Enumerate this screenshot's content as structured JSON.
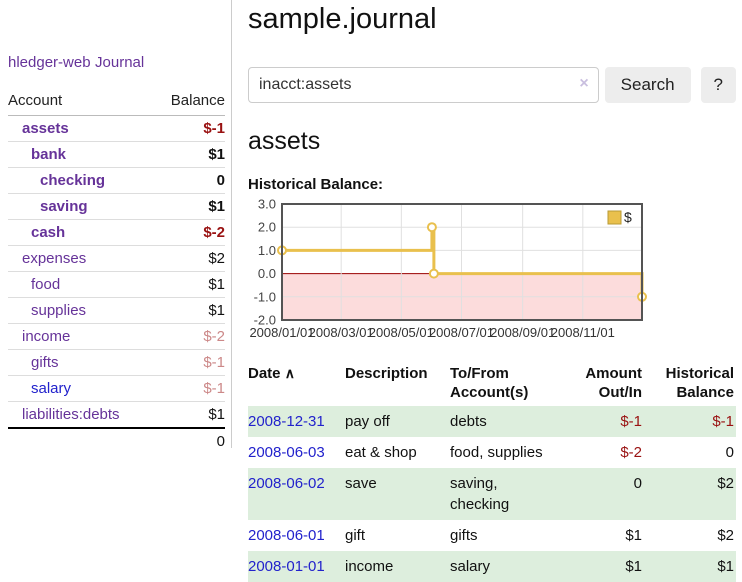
{
  "colors": {
    "link_purple": "#663399",
    "link_blue": "#2222cc",
    "negative": "#991111",
    "negative_pale": "#cc8888",
    "row_green": "#ddeedd"
  },
  "app": {
    "brand": "hledger-web",
    "nav_journal": "Journal"
  },
  "sidebar": {
    "header": {
      "account": "Account",
      "balance": "Balance"
    },
    "accounts": [
      {
        "name": "assets",
        "depth": 1,
        "bold": true,
        "balance": "$-1",
        "balance_class": "neg",
        "link_color": "purple"
      },
      {
        "name": "bank",
        "depth": 2,
        "bold": true,
        "balance": "$1",
        "balance_class": "",
        "link_color": "purple"
      },
      {
        "name": "checking",
        "depth": 3,
        "bold": true,
        "balance": "0",
        "balance_class": "",
        "link_color": "purple"
      },
      {
        "name": "saving",
        "depth": 3,
        "bold": true,
        "balance": "$1",
        "balance_class": "",
        "link_color": "purple"
      },
      {
        "name": "cash",
        "depth": 2,
        "bold": true,
        "balance": "$-2",
        "balance_class": "neg",
        "link_color": "purple"
      },
      {
        "name": "expenses",
        "depth": 1,
        "bold": false,
        "balance": "$2",
        "balance_class": "",
        "link_color": "purple"
      },
      {
        "name": "food",
        "depth": 2,
        "bold": false,
        "balance": "$1",
        "balance_class": "",
        "link_color": "purple"
      },
      {
        "name": "supplies",
        "depth": 2,
        "bold": false,
        "balance": "$1",
        "balance_class": "",
        "link_color": "purple"
      },
      {
        "name": "income",
        "depth": 1,
        "bold": false,
        "balance": "$-2",
        "balance_class": "pale",
        "link_color": "purple"
      },
      {
        "name": "gifts",
        "depth": 2,
        "bold": false,
        "balance": "$-1",
        "balance_class": "pale",
        "link_color": "purple"
      },
      {
        "name": "salary",
        "depth": 2,
        "bold": false,
        "balance": "$-1",
        "balance_class": "pale",
        "link_color": "blue"
      },
      {
        "name": "liabilities:debts",
        "depth": 1,
        "bold": false,
        "balance": "$1",
        "balance_class": "",
        "link_color": "purple"
      }
    ],
    "total": "0"
  },
  "main": {
    "title": "sample.journal",
    "search": {
      "value": "inacct:assets",
      "clear_icon": "×",
      "button_label": "Search",
      "help_label": "?"
    },
    "account_heading": "assets",
    "register": {
      "sort_icon": "∧",
      "columns": [
        {
          "line1": "Date",
          "line2": "",
          "align": "left",
          "sortable": true
        },
        {
          "line1": "Description",
          "line2": "",
          "align": "left"
        },
        {
          "line1": "To/From",
          "line2": "Account(s)",
          "align": "left"
        },
        {
          "line1": "Amount",
          "line2": "Out/In",
          "align": "right"
        },
        {
          "line1": "Historical",
          "line2": "Balance",
          "align": "right"
        }
      ],
      "rows": [
        {
          "date": "2008-12-31",
          "description": "pay off",
          "accounts": "debts",
          "amount": "$-1",
          "amount_negative": true,
          "balance": "$-1",
          "balance_negative": true,
          "shaded": true
        },
        {
          "date": "2008-06-03",
          "description": "eat & shop",
          "accounts": "food, supplies",
          "amount": "$-2",
          "amount_negative": true,
          "balance": "0",
          "balance_negative": false,
          "shaded": false
        },
        {
          "date": "2008-06-02",
          "description": "save",
          "accounts": "saving, checking",
          "amount": "0",
          "amount_negative": false,
          "balance": "$2",
          "balance_negative": false,
          "shaded": true
        },
        {
          "date": "2008-06-01",
          "description": "gift",
          "accounts": "gifts",
          "amount": "$1",
          "amount_negative": false,
          "balance": "$2",
          "balance_negative": false,
          "shaded": false
        },
        {
          "date": "2008-01-01",
          "description": "income",
          "accounts": "salary",
          "amount": "$1",
          "amount_negative": false,
          "balance": "$1",
          "balance_negative": false,
          "shaded": true
        }
      ]
    }
  },
  "chart_data": {
    "type": "line",
    "subtype": "step",
    "title": "Historical Balance:",
    "series": [
      {
        "name": "$",
        "points": [
          {
            "date": "2008-01-01",
            "value": 1
          },
          {
            "date": "2008-06-01",
            "value": 2
          },
          {
            "date": "2008-06-03",
            "value": 0
          },
          {
            "date": "2008-12-31",
            "value": -1
          }
        ]
      }
    ],
    "ylim": [
      -2,
      3
    ],
    "yticks": [
      3,
      2,
      1,
      0,
      -1,
      -2
    ],
    "xrange": [
      "2008-01-01",
      "2008-12-31"
    ],
    "xticks": [
      "2008/01/01",
      "2008/03/01",
      "2008/05/01",
      "2008/07/01",
      "2008/09/01",
      "2008/11/01"
    ],
    "legend_position": "top-right",
    "grid": true,
    "negative_region_shaded": true,
    "colors": {
      "line": "#e9c04d",
      "marker_fill": "#ffffff",
      "negative_fill": "#fcdcdc",
      "zero_line": "#990000",
      "grid": "#e0e0e0",
      "frame": "#545454",
      "tick_label": "#333333",
      "legend_swatch_border": "#b89a35"
    }
  }
}
